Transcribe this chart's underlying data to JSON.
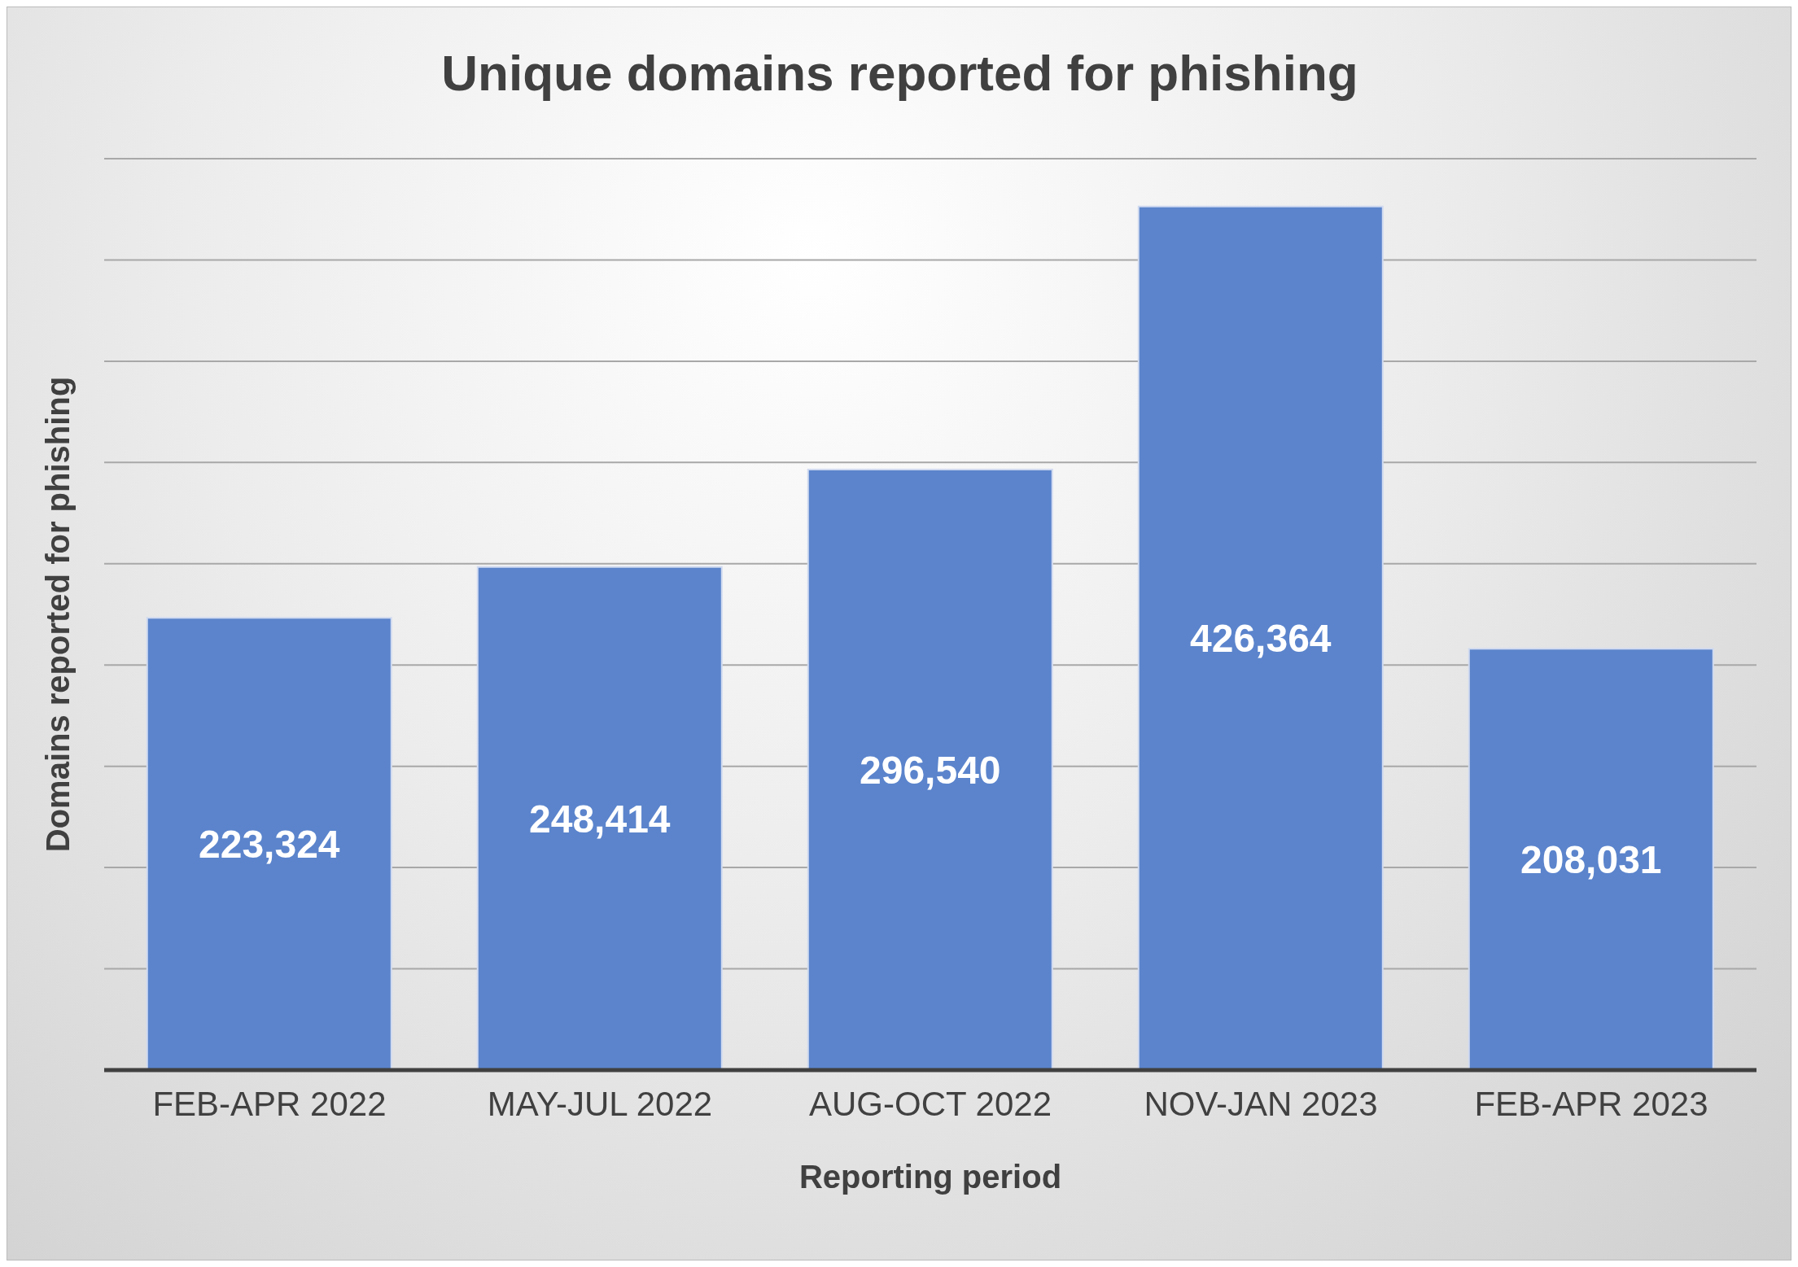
{
  "chart_data": {
    "type": "bar",
    "title": "Unique domains reported for phishing",
    "xlabel": "Reporting period",
    "ylabel": "Domains reported for phishing",
    "categories": [
      "FEB-APR 2022",
      "MAY-JUL 2022",
      "AUG-OCT 2022",
      "NOV-JAN 2023",
      "FEB-APR 2023"
    ],
    "values": [
      223324,
      248414,
      296540,
      426364,
      208031
    ],
    "color": "#5b84cc",
    "value_labels": [
      "223,324",
      "248,414",
      "296,540",
      "426,364",
      "208,031"
    ],
    "ylim": [
      0,
      450000
    ],
    "yticks": [
      {
        "value": 0,
        "label": null
      },
      {
        "value": 50000,
        "label": null
      },
      {
        "value": 100000,
        "label": null
      },
      {
        "value": 150000,
        "label": null
      },
      {
        "value": 200000,
        "label": null
      },
      {
        "value": 250000,
        "label": null
      },
      {
        "value": 300000,
        "label": null
      },
      {
        "value": 350000,
        "label": null
      },
      {
        "value": 400000,
        "label": null
      },
      {
        "value": 450000,
        "label": null
      }
    ],
    "tick_labels": "x",
    "grid": "y"
  }
}
